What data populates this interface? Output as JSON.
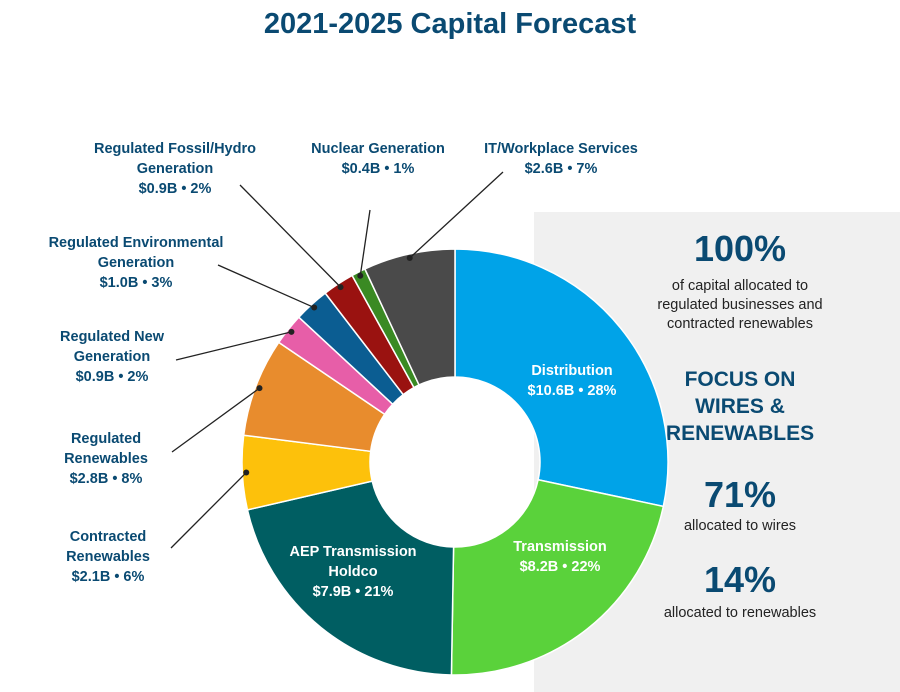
{
  "title": "2021-2025 Capital Forecast",
  "chart_data": {
    "type": "pie",
    "donut": true,
    "title": "2021-2025 Capital Forecast",
    "units": "$B",
    "slices": [
      {
        "name": "Distribution",
        "value": 10.6,
        "percent": 28,
        "label": "$10.6B • 28%",
        "color": "#00a3e8"
      },
      {
        "name": "Transmission",
        "value": 8.2,
        "percent": 22,
        "label": "$8.2B • 22%",
        "color": "#5ad23b"
      },
      {
        "name": "AEP Transmission Holdco",
        "value": 7.9,
        "percent": 21,
        "label": "$7.9B • 21%",
        "color": "#005e62"
      },
      {
        "name": "Contracted Renewables",
        "value": 2.1,
        "percent": 6,
        "label": "$2.1B • 6%",
        "color": "#fdc10b"
      },
      {
        "name": "Regulated Renewables",
        "value": 2.8,
        "percent": 8,
        "label": "$2.8B • 8%",
        "color": "#e88c2d"
      },
      {
        "name": "Regulated New Generation",
        "value": 0.9,
        "percent": 2,
        "label": "$0.9B • 2%",
        "color": "#e75ea8"
      },
      {
        "name": "Regulated Environmental Generation",
        "value": 1.0,
        "percent": 3,
        "label": "$1.0B • 3%",
        "color": "#0b5d92"
      },
      {
        "name": "Regulated Fossil/Hydro Generation",
        "value": 0.9,
        "percent": 2,
        "label": "$0.9B • 2%",
        "color": "#9a1210"
      },
      {
        "name": "Nuclear Generation",
        "value": 0.4,
        "percent": 1,
        "label": "$0.4B • 1%",
        "color": "#3a8a23"
      },
      {
        "name": "IT/Workplace Services",
        "value": 2.6,
        "percent": 7,
        "label": "$2.6B • 7%",
        "color": "#4a4a4a"
      }
    ]
  },
  "labels": {
    "distribution": {
      "line1": "Distribution",
      "line2": "$10.6B • 28%"
    },
    "transmission": {
      "line1": "Transmission",
      "line2": "$8.2B • 22%"
    },
    "holdco": {
      "line1": "AEP Transmission",
      "line2": "Holdco",
      "line3": "$7.9B • 21%"
    },
    "contracted": {
      "line1": "Contracted",
      "line2": "Renewables",
      "line3": "$2.1B • 6%"
    },
    "reg_renew": {
      "line1": "Regulated",
      "line2": "Renewables",
      "line3": "$2.8B • 8%"
    },
    "reg_new": {
      "line1": "Regulated New",
      "line2": "Generation",
      "line3": "$0.9B • 2%"
    },
    "reg_env": {
      "line1": "Regulated Environmental",
      "line2": "Generation",
      "line3": "$1.0B • 3%"
    },
    "reg_fossil": {
      "line1": "Regulated Fossil/Hydro",
      "line2": "Generation",
      "line3": "$0.9B • 2%"
    },
    "nuclear": {
      "line1": "Nuclear Generation",
      "line2": "$0.4B • 1%"
    },
    "it": {
      "line1": "IT/Workplace Services",
      "line2": "$2.6B • 7%"
    }
  },
  "panel": {
    "stat1_value": "100%",
    "stat1_line1": "of capital allocated to",
    "stat1_line2": "regulated businesses and",
    "stat1_line3": "contracted renewables",
    "focus_line1": "FOCUS ON",
    "focus_line2": "WIRES &",
    "focus_line3": "RENEWABLES",
    "stat2_value": "71%",
    "stat2_caption": "allocated to wires",
    "stat3_value": "14%",
    "stat3_caption": "allocated to renewables"
  }
}
